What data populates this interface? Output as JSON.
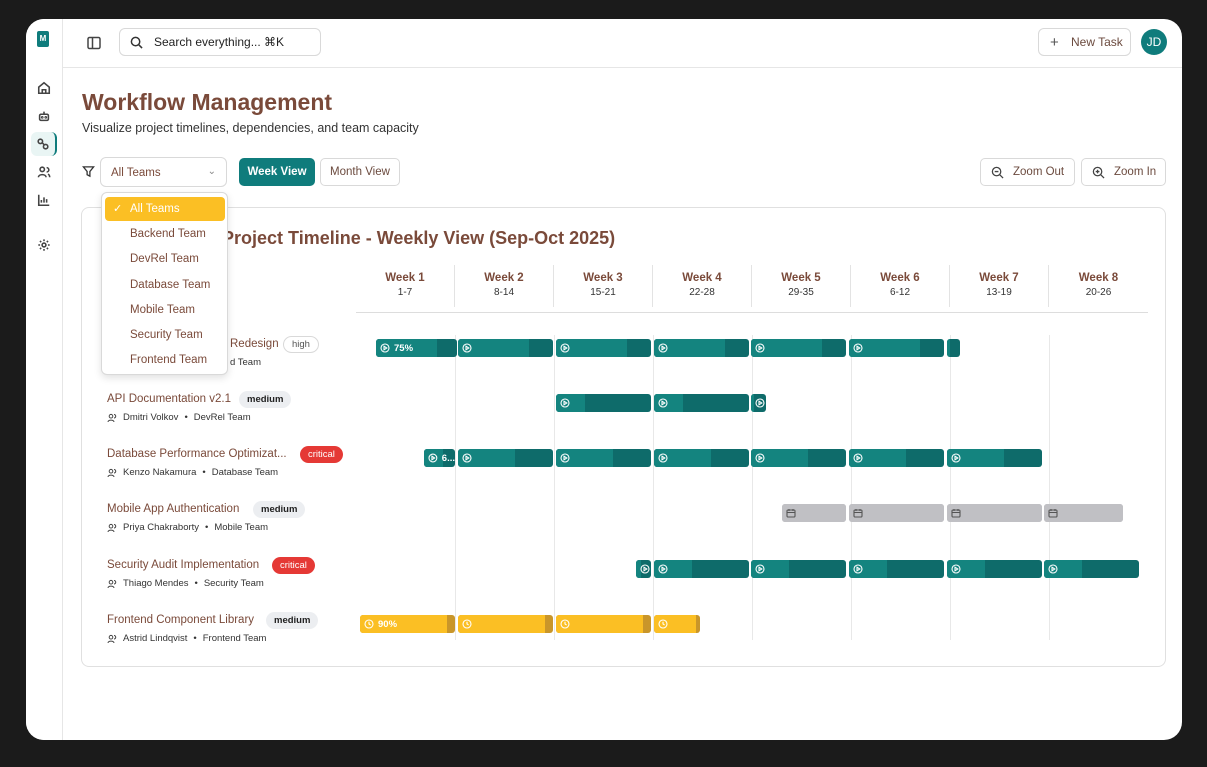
{
  "app": {
    "logo_text": "M",
    "colors": {
      "accent": "#0f7c7c",
      "warning": "#fbbf24",
      "danger": "#e53935",
      "planned": "#c0c0c4"
    }
  },
  "search": {
    "placeholder": "Search everything... ⌘K"
  },
  "header": {
    "new_task_label": "New Task",
    "avatar_initials": "JD"
  },
  "page": {
    "title": "Workflow Management",
    "subtitle": "Visualize project timelines, dependencies, and team capacity"
  },
  "toolbar": {
    "team_filter_value": "All Teams",
    "week_view_label": "Week View",
    "month_view_label": "Month View",
    "zoom_out_label": "Zoom Out",
    "zoom_in_label": "Zoom In"
  },
  "team_options": [
    "All Teams",
    "Backend Team",
    "DevRel Team",
    "Database Team",
    "Mobile Team",
    "Security Team",
    "Frontend Team"
  ],
  "timeline": {
    "title": "Project Timeline - Weekly View (Sep-Oct 2025)",
    "weeks": [
      {
        "label": "Week 1",
        "range": "1-7"
      },
      {
        "label": "Week 2",
        "range": "8-14"
      },
      {
        "label": "Week 3",
        "range": "15-21"
      },
      {
        "label": "Week 4",
        "range": "22-28"
      },
      {
        "label": "Week 5",
        "range": "29-35"
      },
      {
        "label": "Week 6",
        "range": "6-12"
      },
      {
        "label": "Week 7",
        "range": "13-19"
      },
      {
        "label": "Week 8",
        "range": "20-26"
      }
    ],
    "tasks": [
      {
        "name": "Redesign",
        "priority": "high",
        "assignee": "",
        "team": "d Team",
        "status": "in-progress",
        "percent": "75%"
      },
      {
        "name": "API Documentation v2.1",
        "priority": "medium",
        "assignee": "Dmitri Volkov",
        "team": "DevRel Team",
        "status": "in-progress",
        "percent": ""
      },
      {
        "name": "Database Performance Optimizat...",
        "priority": "critical",
        "assignee": "Kenzo Nakamura",
        "team": "Database Team",
        "status": "in-progress",
        "percent": "6..."
      },
      {
        "name": "Mobile App Authentication",
        "priority": "medium",
        "assignee": "Priya Chakraborty",
        "team": "Mobile Team",
        "status": "planned",
        "percent": ""
      },
      {
        "name": "Security Audit Implementation",
        "priority": "critical",
        "assignee": "Thiago Mendes",
        "team": "Security Team",
        "status": "in-progress",
        "percent": ""
      },
      {
        "name": "Frontend Component Library",
        "priority": "medium",
        "assignee": "Astrid Lindqvist",
        "team": "Frontend Team",
        "status": "review",
        "percent": "90%"
      }
    ]
  }
}
